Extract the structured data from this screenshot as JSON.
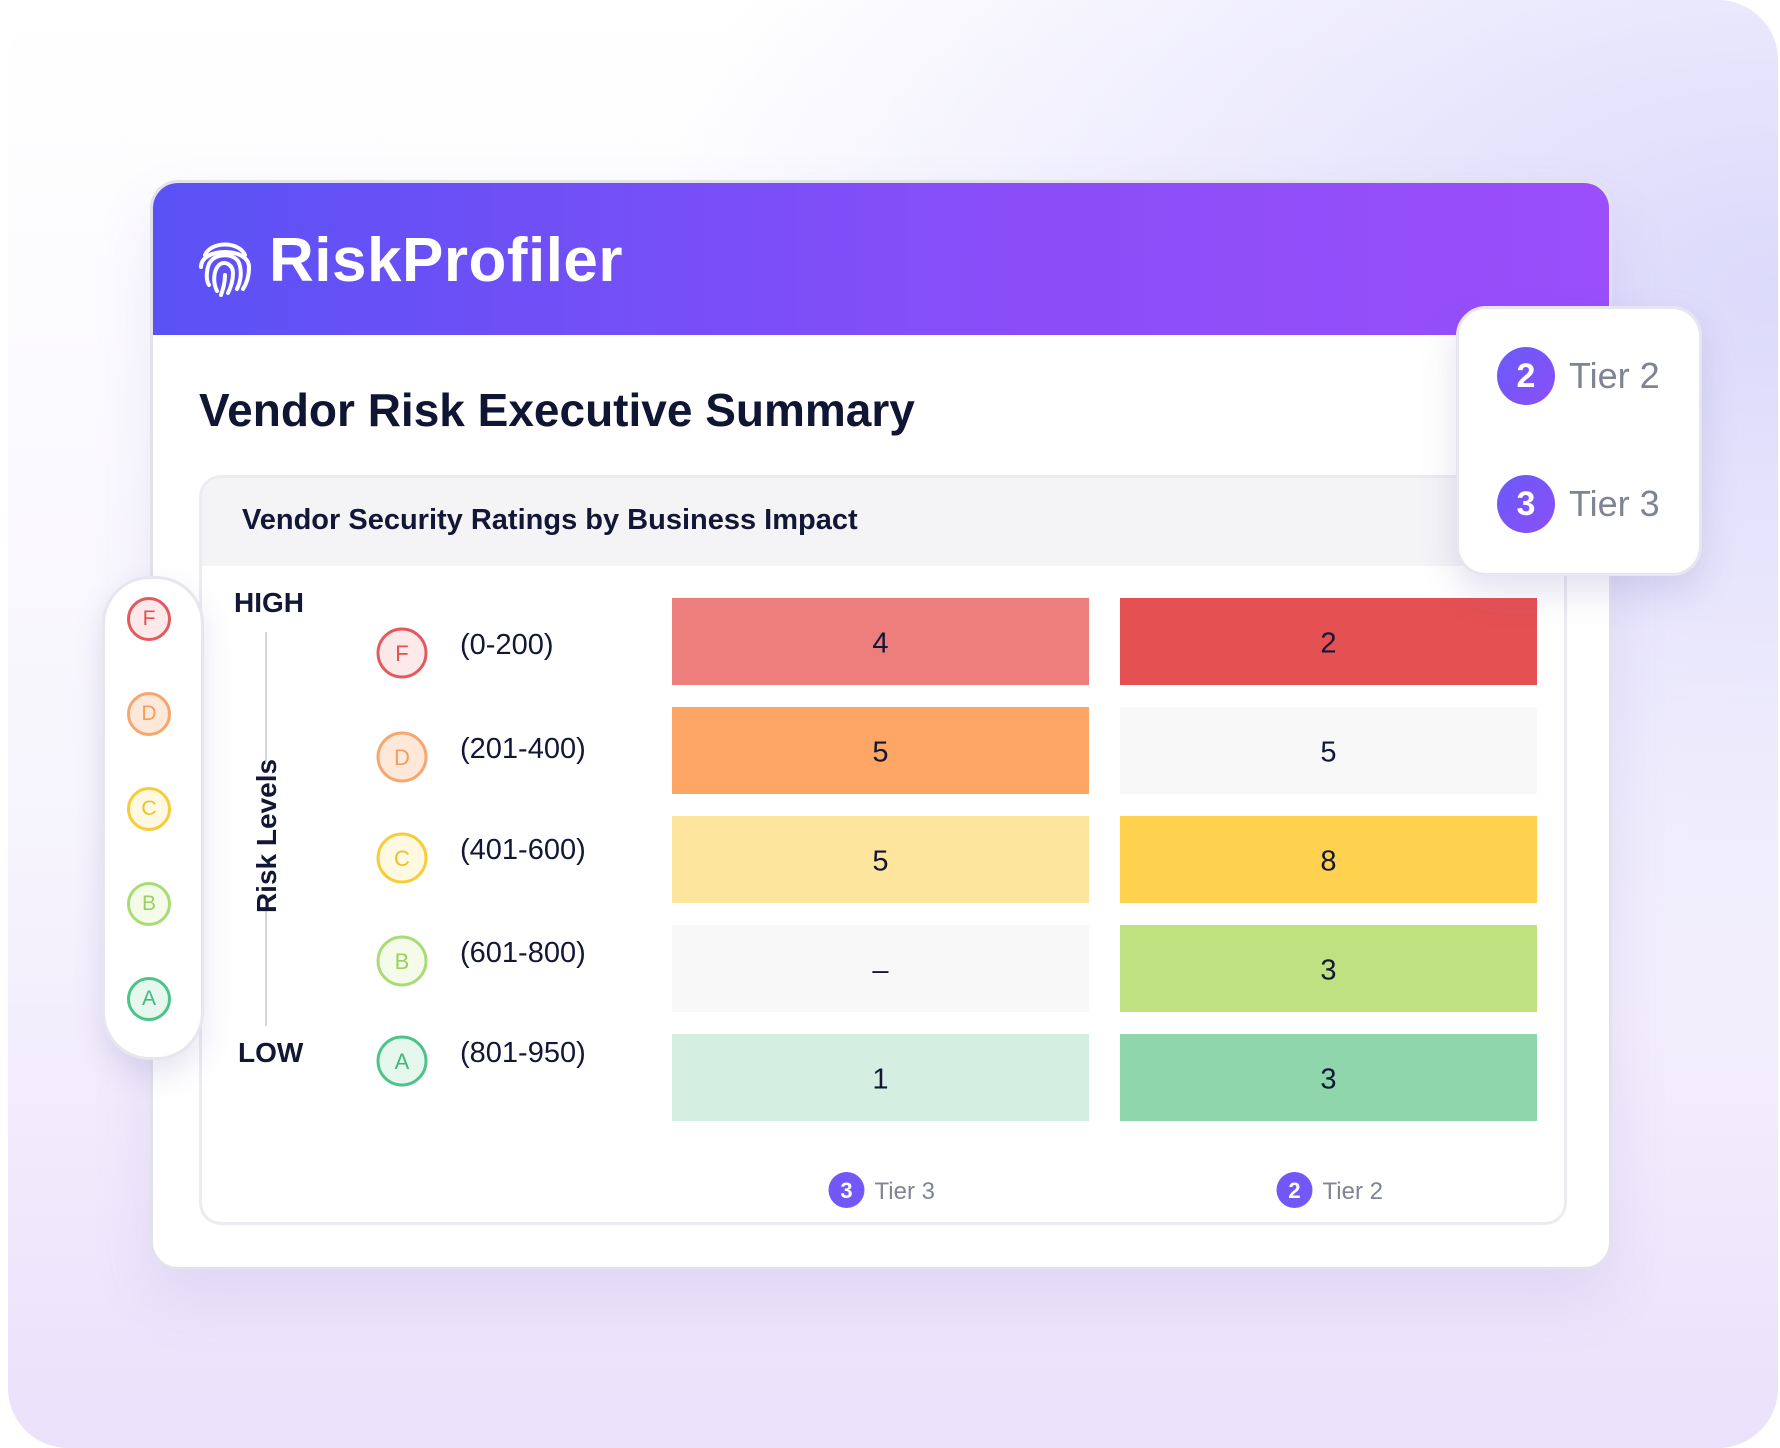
{
  "brand": {
    "name": "RiskProfiler",
    "logo_icon": "fingerprint-icon"
  },
  "page_title": "Vendor Risk Executive Summary",
  "panel_title": "Vendor Security Ratings by Business Impact",
  "side_grades": [
    "F",
    "D",
    "C",
    "B",
    "A"
  ],
  "tier_legend": [
    {
      "number": "2",
      "label": "Tier 2"
    },
    {
      "number": "3",
      "label": "Tier 3"
    }
  ],
  "grade_colors": {
    "F": {
      "border": "#e25a5e",
      "bg": "#fde9ea",
      "text": "#e05055"
    },
    "D": {
      "border": "#f7a66d",
      "bg": "#fee8da",
      "text": "#f59d5e"
    },
    "C": {
      "border": "#f6cc38",
      "bg": "#fff9e2",
      "text": "#efc02a"
    },
    "B": {
      "border": "#a9dc77",
      "bg": "#f4fbe9",
      "text": "#97d35f"
    },
    "A": {
      "border": "#4cc38b",
      "bg": "#e6f7ee",
      "text": "#3fb97d"
    }
  },
  "chart_data": {
    "type": "heatmap",
    "title": "Vendor Security Ratings by Business Impact",
    "y_axis": {
      "label": "Risk Levels",
      "top": "HIGH",
      "bottom": "LOW"
    },
    "rows": [
      {
        "grade": "F",
        "range": "(0-200)"
      },
      {
        "grade": "D",
        "range": "(201-400)"
      },
      {
        "grade": "C",
        "range": "(401-600)"
      },
      {
        "grade": "B",
        "range": "(601-800)"
      },
      {
        "grade": "A",
        "range": "(801-950)"
      }
    ],
    "columns": [
      {
        "number": "3",
        "label": "Tier 3"
      },
      {
        "number": "2",
        "label": "Tier 2"
      }
    ],
    "cells": [
      [
        {
          "value": "4",
          "color": "#ed7e7b"
        },
        {
          "value": "2",
          "color": "#e55052"
        }
      ],
      [
        {
          "value": "5",
          "color": "#fea665"
        },
        {
          "value": "5",
          "color": "#f8f8f9"
        }
      ],
      [
        {
          "value": "5",
          "color": "#fde59e"
        },
        {
          "value": "8",
          "color": "#fed24f"
        }
      ],
      [
        {
          "value": "–",
          "color": "#f8f8f9"
        },
        {
          "value": "3",
          "color": "#bfe17f"
        }
      ],
      [
        {
          "value": "1",
          "color": "#d4efe1"
        },
        {
          "value": "3",
          "color": "#8fd6ad"
        }
      ]
    ]
  }
}
